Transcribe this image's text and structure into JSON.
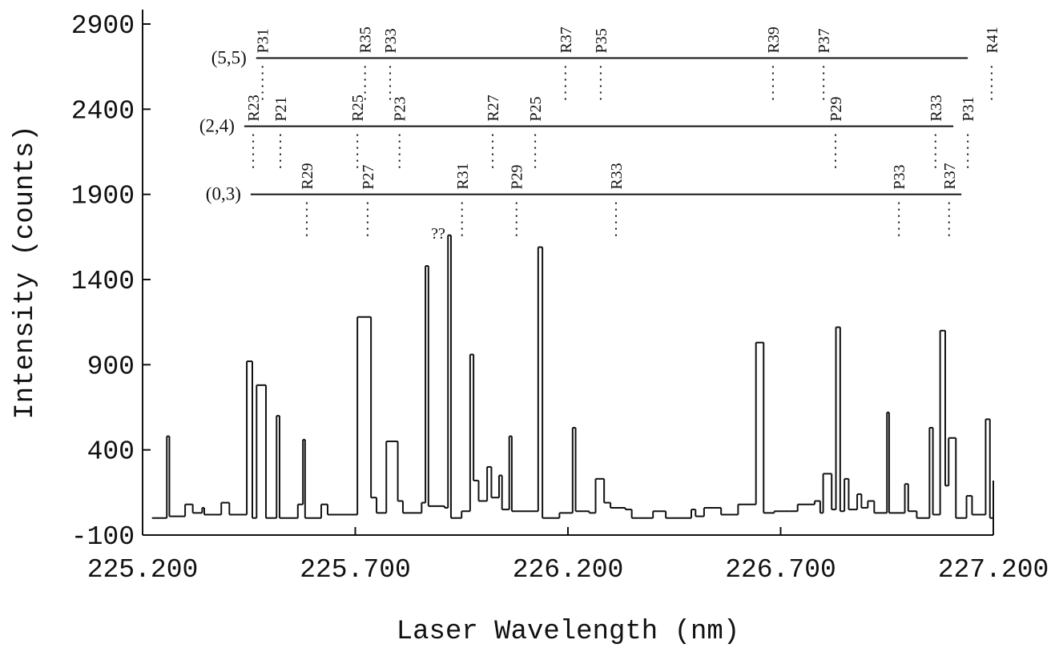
{
  "chart_data": {
    "type": "line",
    "drawstyle": "steps",
    "color": "#111111",
    "xlabel": "Laser Wavelength (nm)",
    "ylabel": "Intensity (counts)",
    "xlim": [
      225.2,
      227.2
    ],
    "ylim": [
      -100,
      2900
    ],
    "xticks": [
      {
        "value": 225.2,
        "label": "225.200"
      },
      {
        "value": 225.7,
        "label": "225.700"
      },
      {
        "value": 226.2,
        "label": "226.200"
      },
      {
        "value": 226.7,
        "label": "226.700"
      },
      {
        "value": 227.2,
        "label": "227.200"
      }
    ],
    "yticks": [
      -100,
      400,
      900,
      1400,
      1900,
      2400,
      2900
    ],
    "x": [
      225.222,
      225.257,
      225.263,
      225.3,
      225.318,
      225.34,
      225.345,
      225.385,
      225.404,
      225.445,
      225.458,
      225.468,
      225.49,
      225.515,
      225.522,
      225.565,
      225.577,
      225.582,
      225.62,
      225.635,
      225.705,
      225.737,
      225.75,
      225.773,
      225.8,
      225.812,
      225.856,
      225.865,
      225.872,
      225.91,
      225.918,
      225.925,
      225.95,
      225.97,
      225.978,
      225.99,
      226.01,
      226.02,
      226.038,
      226.045,
      226.062,
      226.068,
      226.13,
      226.14,
      226.18,
      226.211,
      226.218,
      226.25,
      226.265,
      226.285,
      226.3,
      226.335,
      226.35,
      226.4,
      226.43,
      226.49,
      226.5,
      226.52,
      226.56,
      226.6,
      226.642,
      226.66,
      226.685,
      226.72,
      226.74,
      226.78,
      226.793,
      226.8,
      226.82,
      226.83,
      226.84,
      226.85,
      226.86,
      226.88,
      226.89,
      226.905,
      226.92,
      226.95,
      226.955,
      226.992,
      227.0,
      227.02,
      227.05,
      227.058,
      227.075,
      227.087,
      227.095,
      227.112,
      227.137,
      227.15,
      227.182,
      227.192
    ],
    "values": [
      0,
      480,
      10,
      80,
      30,
      60,
      20,
      90,
      20,
      920,
      0,
      780,
      0,
      600,
      0,
      80,
      460,
      0,
      80,
      20,
      1180,
      120,
      30,
      450,
      100,
      30,
      90,
      1480,
      70,
      60,
      1660,
      0,
      40,
      960,
      220,
      100,
      300,
      120,
      250,
      50,
      480,
      40,
      1590,
      0,
      30,
      530,
      40,
      30,
      230,
      90,
      60,
      50,
      0,
      40,
      0,
      50,
      10,
      60,
      20,
      80,
      1030,
      30,
      40,
      40,
      80,
      100,
      30,
      260,
      50,
      1120,
      40,
      230,
      50,
      140,
      60,
      100,
      30,
      620,
      30,
      200,
      40,
      0,
      530,
      20,
      1100,
      190,
      470,
      0,
      130,
      20,
      580,
      0
    ],
    "bands": [
      {
        "label": "(5,5)",
        "y": 2700,
        "x_range": [
          225.467,
          227.14
        ],
        "lines": [
          {
            "label": "P31",
            "x": 225.482
          },
          {
            "label": "R35",
            "x": 225.723
          },
          {
            "label": "P33",
            "x": 225.782
          },
          {
            "label": "R37",
            "x": 226.194
          },
          {
            "label": "P35",
            "x": 226.277
          },
          {
            "label": "R39",
            "x": 226.682
          },
          {
            "label": "P37",
            "x": 226.801
          },
          {
            "label": "R41",
            "x": 227.196
          }
        ]
      },
      {
        "label": "(2,4)",
        "y": 2300,
        "x_range": [
          225.439,
          227.106
        ],
        "lines": [
          {
            "label": "R23",
            "x": 225.46
          },
          {
            "label": "P21",
            "x": 225.524
          },
          {
            "label": "R25",
            "x": 225.705
          },
          {
            "label": "P23",
            "x": 225.804
          },
          {
            "label": "R27",
            "x": 226.023
          },
          {
            "label": "P25",
            "x": 226.123
          },
          {
            "label": "P29",
            "x": 226.829
          },
          {
            "label": "R33",
            "x": 227.064
          },
          {
            "label": "P31",
            "x": 227.14
          }
        ]
      },
      {
        "label": "(0,3)",
        "y": 1900,
        "x_range": [
          225.454,
          227.125
        ],
        "lines": [
          {
            "label": "R29",
            "x": 225.586
          },
          {
            "label": "P27",
            "x": 225.729
          },
          {
            "label": "R31",
            "x": 225.951
          },
          {
            "label": "P29",
            "x": 226.079
          },
          {
            "label": "R33",
            "x": 226.313
          },
          {
            "label": "P33",
            "x": 226.978
          },
          {
            "label": "R37",
            "x": 227.096
          }
        ]
      }
    ],
    "annotations": [
      {
        "text": "??",
        "x": 225.895,
        "y": 1640
      }
    ]
  }
}
